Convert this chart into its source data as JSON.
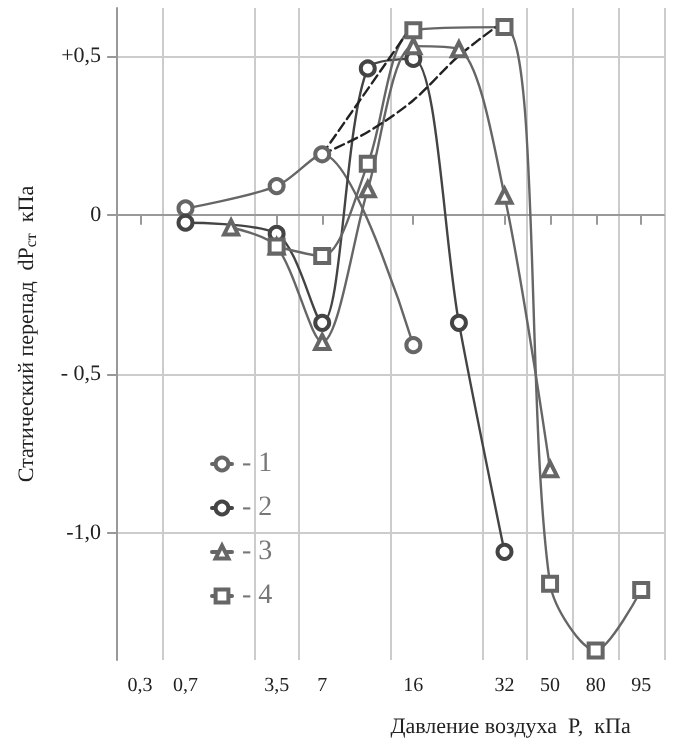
{
  "chart_data": {
    "type": "line",
    "xlabel": "Давление воздуха  P,  кПа",
    "ylabel": "Статический перепад  dP$_{ст}$  кПа",
    "categories": [
      "0,3",
      "0,7",
      null,
      "3,5",
      "7",
      null,
      "16",
      null,
      "32",
      "50",
      "80",
      "95"
    ],
    "ylim": [
      -1.4,
      0.65
    ],
    "yticks": [
      {
        "value": -1,
        "label": "-1,0"
      },
      {
        "value": -0.5,
        "label": "- 0,5"
      },
      0,
      {
        "value": 0.5,
        "label": "+0,5"
      }
    ],
    "grid": true,
    "legend": "left",
    "line_style": "solid",
    "series": [
      {
        "name": "- 1",
        "color": "#666666",
        "marker": "circle",
        "values": [
          null,
          0.02,
          null,
          0.09,
          0.19,
          null,
          -0.41,
          null,
          null,
          null,
          null,
          null
        ]
      },
      {
        "name": "- 2",
        "color": "#444444",
        "marker": "circle",
        "values": [
          null,
          -0.025,
          null,
          -0.06,
          -0.34,
          0.46,
          0.49,
          -0.34,
          -1.06,
          null,
          null,
          null
        ]
      },
      {
        "name": "- 3",
        "color": "#666666",
        "marker": "triangle",
        "values": [
          null,
          null,
          -0.04,
          -0.1,
          -0.4,
          0.08,
          0.53,
          0.52,
          0.06,
          -0.8,
          null,
          null
        ]
      },
      {
        "name": "- 4",
        "color": "#666666",
        "marker": "square",
        "values": [
          null,
          null,
          null,
          -0.1,
          -0.13,
          0.16,
          0.58,
          null,
          0.59,
          -1.16,
          -1.37,
          -1.18
        ]
      },
      {
        "color": "#222222",
        "marker": "none",
        "line_style": "dashed",
        "values": [
          null,
          null,
          null,
          null,
          0.19,
          null,
          0.6,
          null,
          null,
          null,
          null,
          null
        ]
      },
      {
        "color": "#222222",
        "marker": "none",
        "line_style": "dashed",
        "values": [
          null,
          null,
          null,
          null,
          0.19,
          0.26,
          0.36,
          0.5,
          0.61,
          null,
          null,
          null
        ]
      }
    ]
  }
}
